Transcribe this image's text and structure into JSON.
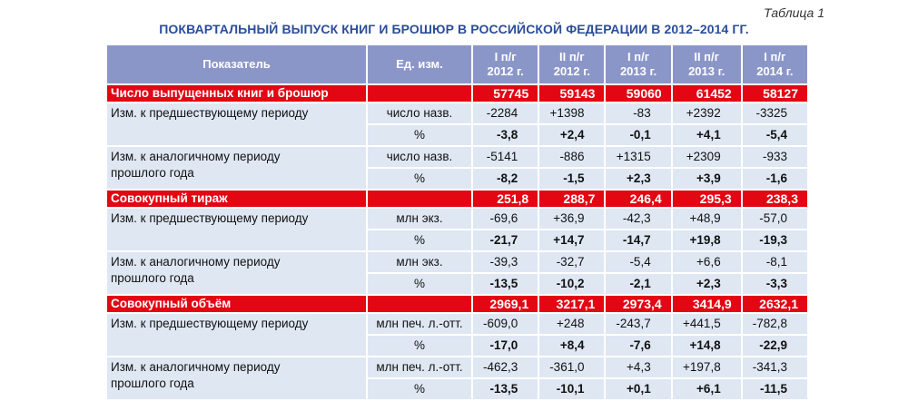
{
  "caption": "Таблица 1",
  "title": "ПОКВАРТАЛЬНЫЙ ВЫПУСК КНИГ И БРОШЮР В РОССИЙСКОЙ ФЕДЕРАЦИИ В 2012–2014 ГГ.",
  "header": {
    "indicator": "Показатель",
    "unit": "Ед. изм.",
    "periods": [
      {
        "line1": "I п/г",
        "line2": "2012 г."
      },
      {
        "line1": "II п/г",
        "line2": "2012 г."
      },
      {
        "line1": "I п/г",
        "line2": "2013 г."
      },
      {
        "line1": "II п/г",
        "line2": "2013 г."
      },
      {
        "line1": "I п/г",
        "line2": "2014 г."
      }
    ]
  },
  "sections": [
    {
      "title": "Число выпущенных книг и брошюр",
      "values": [
        "57745",
        "59143",
        "59060",
        "61452",
        "58127"
      ],
      "prev_label": "Изм. к предшествующему периоду",
      "prev_unit_abs": "число назв.",
      "prev_abs": [
        "-2284",
        "+1398",
        "-83",
        "+2392",
        "-3325"
      ],
      "prev_unit_pct": "%",
      "prev_pct": [
        "-3,8",
        "+2,4",
        "-0,1",
        "+4,1",
        "-5,4"
      ],
      "yoy_label_1": "Изм. к аналогичному периоду",
      "yoy_label_2": "прошлого года",
      "yoy_unit_abs": "число назв.",
      "yoy_abs": [
        "-5141",
        "-886",
        "+1315",
        "+2309",
        "-933"
      ],
      "yoy_unit_pct": "%",
      "yoy_pct": [
        "-8,2",
        "-1,5",
        "+2,3",
        "+3,9",
        "-1,6"
      ]
    },
    {
      "title": "Совокупный тираж",
      "values": [
        "251,8",
        "288,7",
        "246,4",
        "295,3",
        "238,3"
      ],
      "prev_label": "Изм. к предшествующему периоду",
      "prev_unit_abs": "млн экз.",
      "prev_abs": [
        "-69,6",
        "+36,9",
        "-42,3",
        "+48,9",
        "-57,0"
      ],
      "prev_unit_pct": "%",
      "prev_pct": [
        "-21,7",
        "+14,7",
        "-14,7",
        "+19,8",
        "-19,3"
      ],
      "yoy_label_1": "Изм. к аналогичному периоду",
      "yoy_label_2": "прошлого года",
      "yoy_unit_abs": "млн экз.",
      "yoy_abs": [
        "-39,3",
        "-32,7",
        "-5,4",
        "+6,6",
        "-8,1"
      ],
      "yoy_unit_pct": "%",
      "yoy_pct": [
        "-13,5",
        "-10,2",
        "-2,1",
        "+2,3",
        "-3,3"
      ]
    },
    {
      "title": "Совокупный объём",
      "values": [
        "2969,1",
        "3217,1",
        "2973,4",
        "3414,9",
        "2632,1"
      ],
      "prev_label": "Изм. к предшествующему периоду",
      "prev_unit_abs": "млн печ. л.-отт.",
      "prev_abs": [
        "-609,0",
        "+248",
        "-243,7",
        "+441,5",
        "-782,8"
      ],
      "prev_unit_pct": "%",
      "prev_pct": [
        "-17,0",
        "+8,4",
        "-7,6",
        "+14,8",
        "-22,9"
      ],
      "yoy_label_1": "Изм. к аналогичному периоду",
      "yoy_label_2": "прошлого года",
      "yoy_unit_abs": "млн печ. л.-отт.",
      "yoy_abs": [
        "-462,3",
        "-361,0",
        "+4,3",
        "+197,8",
        "-341,3"
      ],
      "yoy_unit_pct": "%",
      "yoy_pct": [
        "-13,5",
        "-10,1",
        "+0,1",
        "+6,1",
        "-11,5"
      ]
    }
  ]
}
